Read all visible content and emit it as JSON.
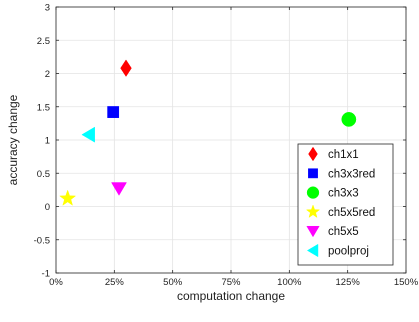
{
  "chart_data": {
    "type": "scatter",
    "xlabel": "computation change",
    "ylabel": "accuracy change",
    "xlim": [
      0,
      150
    ],
    "ylim": [
      -1,
      3
    ],
    "x_ticks": [
      0,
      25,
      50,
      75,
      100,
      125,
      150
    ],
    "x_tick_labels": [
      "0%",
      "25%",
      "50%",
      "75%",
      "100%",
      "125%",
      "150%"
    ],
    "y_ticks": [
      -1,
      -0.5,
      0,
      0.5,
      1,
      1.5,
      2,
      2.5,
      3
    ],
    "y_tick_labels": [
      "-1",
      "-0.5",
      "0",
      "0.5",
      "1",
      "1.5",
      "2",
      "2.5",
      "3"
    ],
    "grid": true,
    "legend_position": "bottom-right",
    "series": [
      {
        "name": "ch1x1",
        "marker": "diamond",
        "color": "#ff0000",
        "x": 30,
        "y": 2.08
      },
      {
        "name": "ch3x3red",
        "marker": "square",
        "color": "#0000ff",
        "x": 24.5,
        "y": 1.42
      },
      {
        "name": "ch3x3",
        "marker": "circle",
        "color": "#00ff00",
        "x": 125.5,
        "y": 1.31
      },
      {
        "name": "ch5x5red",
        "marker": "star",
        "color": "#ffff00",
        "x": 5,
        "y": 0.12
      },
      {
        "name": "ch5x5",
        "marker": "triangle-down",
        "color": "#ff00ff",
        "x": 27,
        "y": 0.27
      },
      {
        "name": "poolproj",
        "marker": "triangle-left",
        "color": "#00ffff",
        "x": 14,
        "y": 1.08
      }
    ]
  }
}
